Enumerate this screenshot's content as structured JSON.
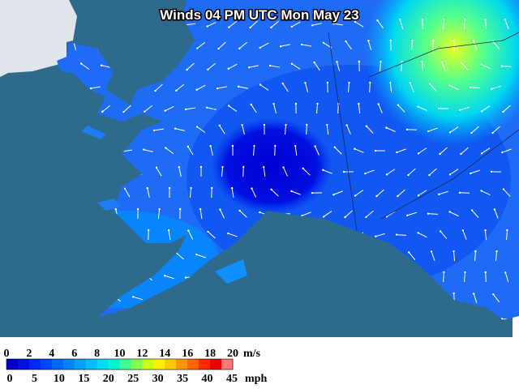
{
  "title": "Winds 04 PM UTC Mon May 23",
  "legend": {
    "ms_labels": [
      0,
      2,
      4,
      6,
      8,
      10,
      12,
      14,
      16,
      18,
      20
    ],
    "ms_unit": "m/s",
    "mph_labels": [
      0,
      5,
      10,
      15,
      20,
      25,
      30,
      35,
      40,
      45
    ],
    "mph_unit": "mph",
    "colors": [
      "#0000c8",
      "#0010e0",
      "#0028f5",
      "#0046ff",
      "#0064ff",
      "#0082ff",
      "#00a0ff",
      "#00beff",
      "#00dcf5",
      "#00f5d2",
      "#3cff96",
      "#82ff50",
      "#c8ff14",
      "#fff000",
      "#ffc800",
      "#ff9600",
      "#ff6400",
      "#ff2800",
      "#e60000",
      "#ff7878"
    ]
  }
}
